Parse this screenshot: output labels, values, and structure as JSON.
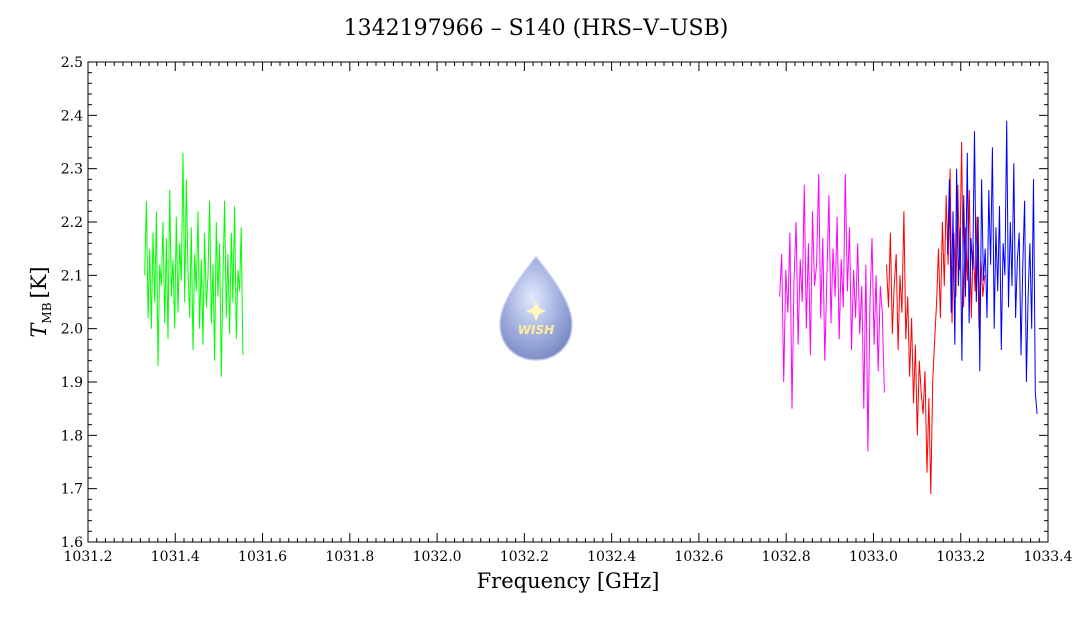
{
  "chart_data": {
    "type": "line",
    "title": "1342197966 – S140 (HRS–V–USB)",
    "xlabel": "Frequency [GHz]",
    "ylabel_main": "T",
    "ylabel_sub": "MB",
    "ylabel_unit": "[K]",
    "xlim": [
      1031.2,
      1033.4
    ],
    "ylim": [
      1.6,
      2.5
    ],
    "xticks": [
      "1031.2",
      "1031.4",
      "1031.6",
      "1031.8",
      "1032.0",
      "1032.2",
      "1032.4",
      "1032.6",
      "1032.8",
      "1033.0",
      "1033.2",
      "1033.4"
    ],
    "yticks": [
      "1.6",
      "1.7",
      "1.8",
      "1.9",
      "2.0",
      "2.1",
      "2.2",
      "2.3",
      "2.4",
      "2.5"
    ],
    "grid": false,
    "logo_text": "WISH",
    "series": [
      {
        "color": "#00ff00",
        "x_range": [
          1031.33,
          1031.555
        ],
        "values": [
          2.1,
          2.24,
          2.02,
          2.15,
          2.0,
          2.18,
          2.05,
          2.22,
          1.93,
          2.12,
          2.08,
          2.2,
          2.01,
          2.17,
          1.98,
          2.26,
          2.06,
          2.13,
          2.0,
          2.21,
          2.03,
          2.16,
          2.09,
          2.33,
          2.05,
          2.28,
          2.11,
          2.02,
          2.19,
          1.96,
          2.14,
          2.07,
          2.22,
          2.0,
          2.13,
          1.97,
          2.18,
          2.04,
          2.1,
          2.24,
          2.01,
          2.12,
          1.94,
          2.2,
          2.06,
          2.16,
          1.91,
          2.09,
          2.24,
          2.02,
          2.14,
          1.99,
          2.18,
          2.05,
          2.23,
          1.98,
          2.11,
          2.07,
          2.19,
          1.95
        ]
      },
      {
        "color": "#ff00ff",
        "x_range": [
          1032.785,
          1033.025
        ],
        "values": [
          2.06,
          2.14,
          1.9,
          2.11,
          2.03,
          2.18,
          1.85,
          2.09,
          2.2,
          1.97,
          2.13,
          2.05,
          2.27,
          2.0,
          2.16,
          1.95,
          2.22,
          2.08,
          2.12,
          2.29,
          2.02,
          2.17,
          1.94,
          2.1,
          2.25,
          2.01,
          2.15,
          2.06,
          2.21,
          1.98,
          2.13,
          2.04,
          2.29,
          2.07,
          2.19,
          1.96,
          2.11,
          2.02,
          2.16,
          1.99,
          2.08,
          1.85,
          2.12,
          1.77,
          2.05,
          2.17,
          1.97,
          2.1,
          1.92,
          2.08,
          2.03,
          1.88
        ]
      },
      {
        "color": "#ff0000",
        "x_range": [
          1033.03,
          1033.255
        ],
        "values": [
          2.12,
          2.04,
          2.18,
          1.99,
          2.08,
          2.14,
          1.96,
          2.1,
          2.03,
          2.22,
          1.98,
          2.06,
          1.91,
          2.02,
          1.86,
          1.97,
          1.8,
          1.94,
          1.88,
          1.84,
          1.92,
          1.73,
          1.87,
          1.69,
          1.9,
          1.98,
          2.05,
          2.15,
          2.02,
          2.2,
          2.08,
          2.25,
          2.12,
          2.3,
          2.01,
          2.18,
          2.06,
          2.27,
          2.11,
          2.35,
          2.04,
          2.19,
          2.09,
          2.26,
          2.02,
          2.16,
          2.07,
          2.21,
          2.0,
          2.13,
          2.06,
          2.1
        ]
      },
      {
        "color": "#0000ff",
        "x_range": [
          1033.17,
          1033.375
        ],
        "values": [
          2.14,
          2.28,
          2.03,
          2.22,
          1.97,
          2.3,
          2.08,
          2.19,
          1.94,
          2.25,
          2.06,
          2.33,
          2.01,
          2.17,
          2.11,
          2.37,
          2.05,
          2.21,
          1.92,
          2.28,
          2.09,
          2.15,
          2.02,
          2.26,
          2.12,
          2.34,
          2.0,
          2.19,
          2.07,
          2.23,
          1.96,
          2.16,
          2.1,
          2.39,
          2.04,
          2.2,
          2.08,
          2.31,
          2.02,
          2.13,
          2.18,
          1.95,
          2.12,
          2.24,
          1.9,
          2.06,
          2.16,
          2.0,
          2.28,
          1.88,
          1.84
        ]
      }
    ]
  }
}
